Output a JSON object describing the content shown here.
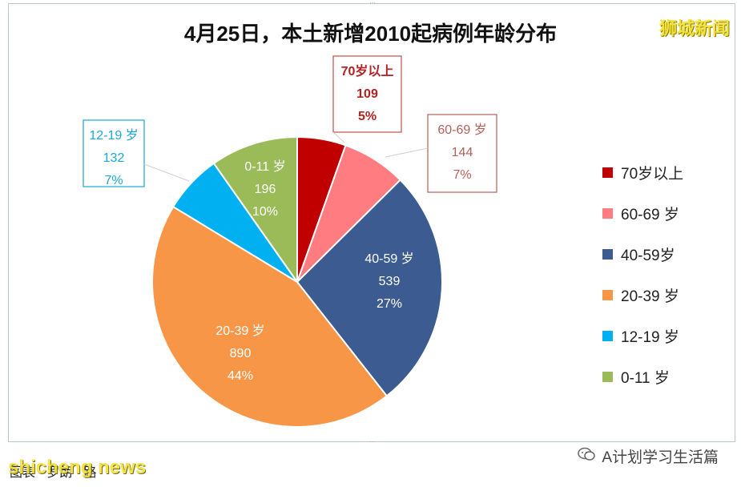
{
  "title": "4月25日，本土新增2010起病例年龄分布",
  "watermark_top": "狮城新闻",
  "footer_left": "图表 · 罗朗 · 路",
  "footer_watermark": "shicheng news",
  "footer_right": "A计划学习生活篇",
  "chart_data": {
    "type": "pie",
    "title": "4月25日，本土新增2010起病例年龄分布",
    "start_angle": "12 o'clock, clockwise",
    "legend_position": "right",
    "slices": [
      {
        "name": "70岁以上",
        "label": "70岁以上",
        "value": 109,
        "percent": "5%",
        "color": "#c00000",
        "label_color": "#b22222",
        "callout": true,
        "border_color": "#c0504d"
      },
      {
        "name": "60-69 岁",
        "label": "60-69 岁",
        "value": 144,
        "percent": "7%",
        "color": "#ff7c80",
        "label_color": "#b5605a",
        "callout": true,
        "border_color": "#b5605a"
      },
      {
        "name": "40-59岁",
        "label": "40-59 岁",
        "value": 539,
        "percent": "27%",
        "color": "#3c5c91",
        "label_color": "#ffffff",
        "callout": false
      },
      {
        "name": "20-39 岁",
        "label": "20-39 岁",
        "value": 890,
        "percent": "44%",
        "color": "#f79646",
        "label_color": "#ffffff",
        "callout": false
      },
      {
        "name": "12-19 岁",
        "label": "12-19 岁",
        "value": 132,
        "percent": "7%",
        "color": "#00b0f0",
        "label_color": "#1aa7d6",
        "callout": true,
        "border_color": "#1aa7d6"
      },
      {
        "name": "0-11 岁",
        "label": "0-11 岁",
        "value": 196,
        "percent": "10%",
        "color": "#9bbb59",
        "label_color": "#ffffff",
        "callout": false
      }
    ]
  }
}
